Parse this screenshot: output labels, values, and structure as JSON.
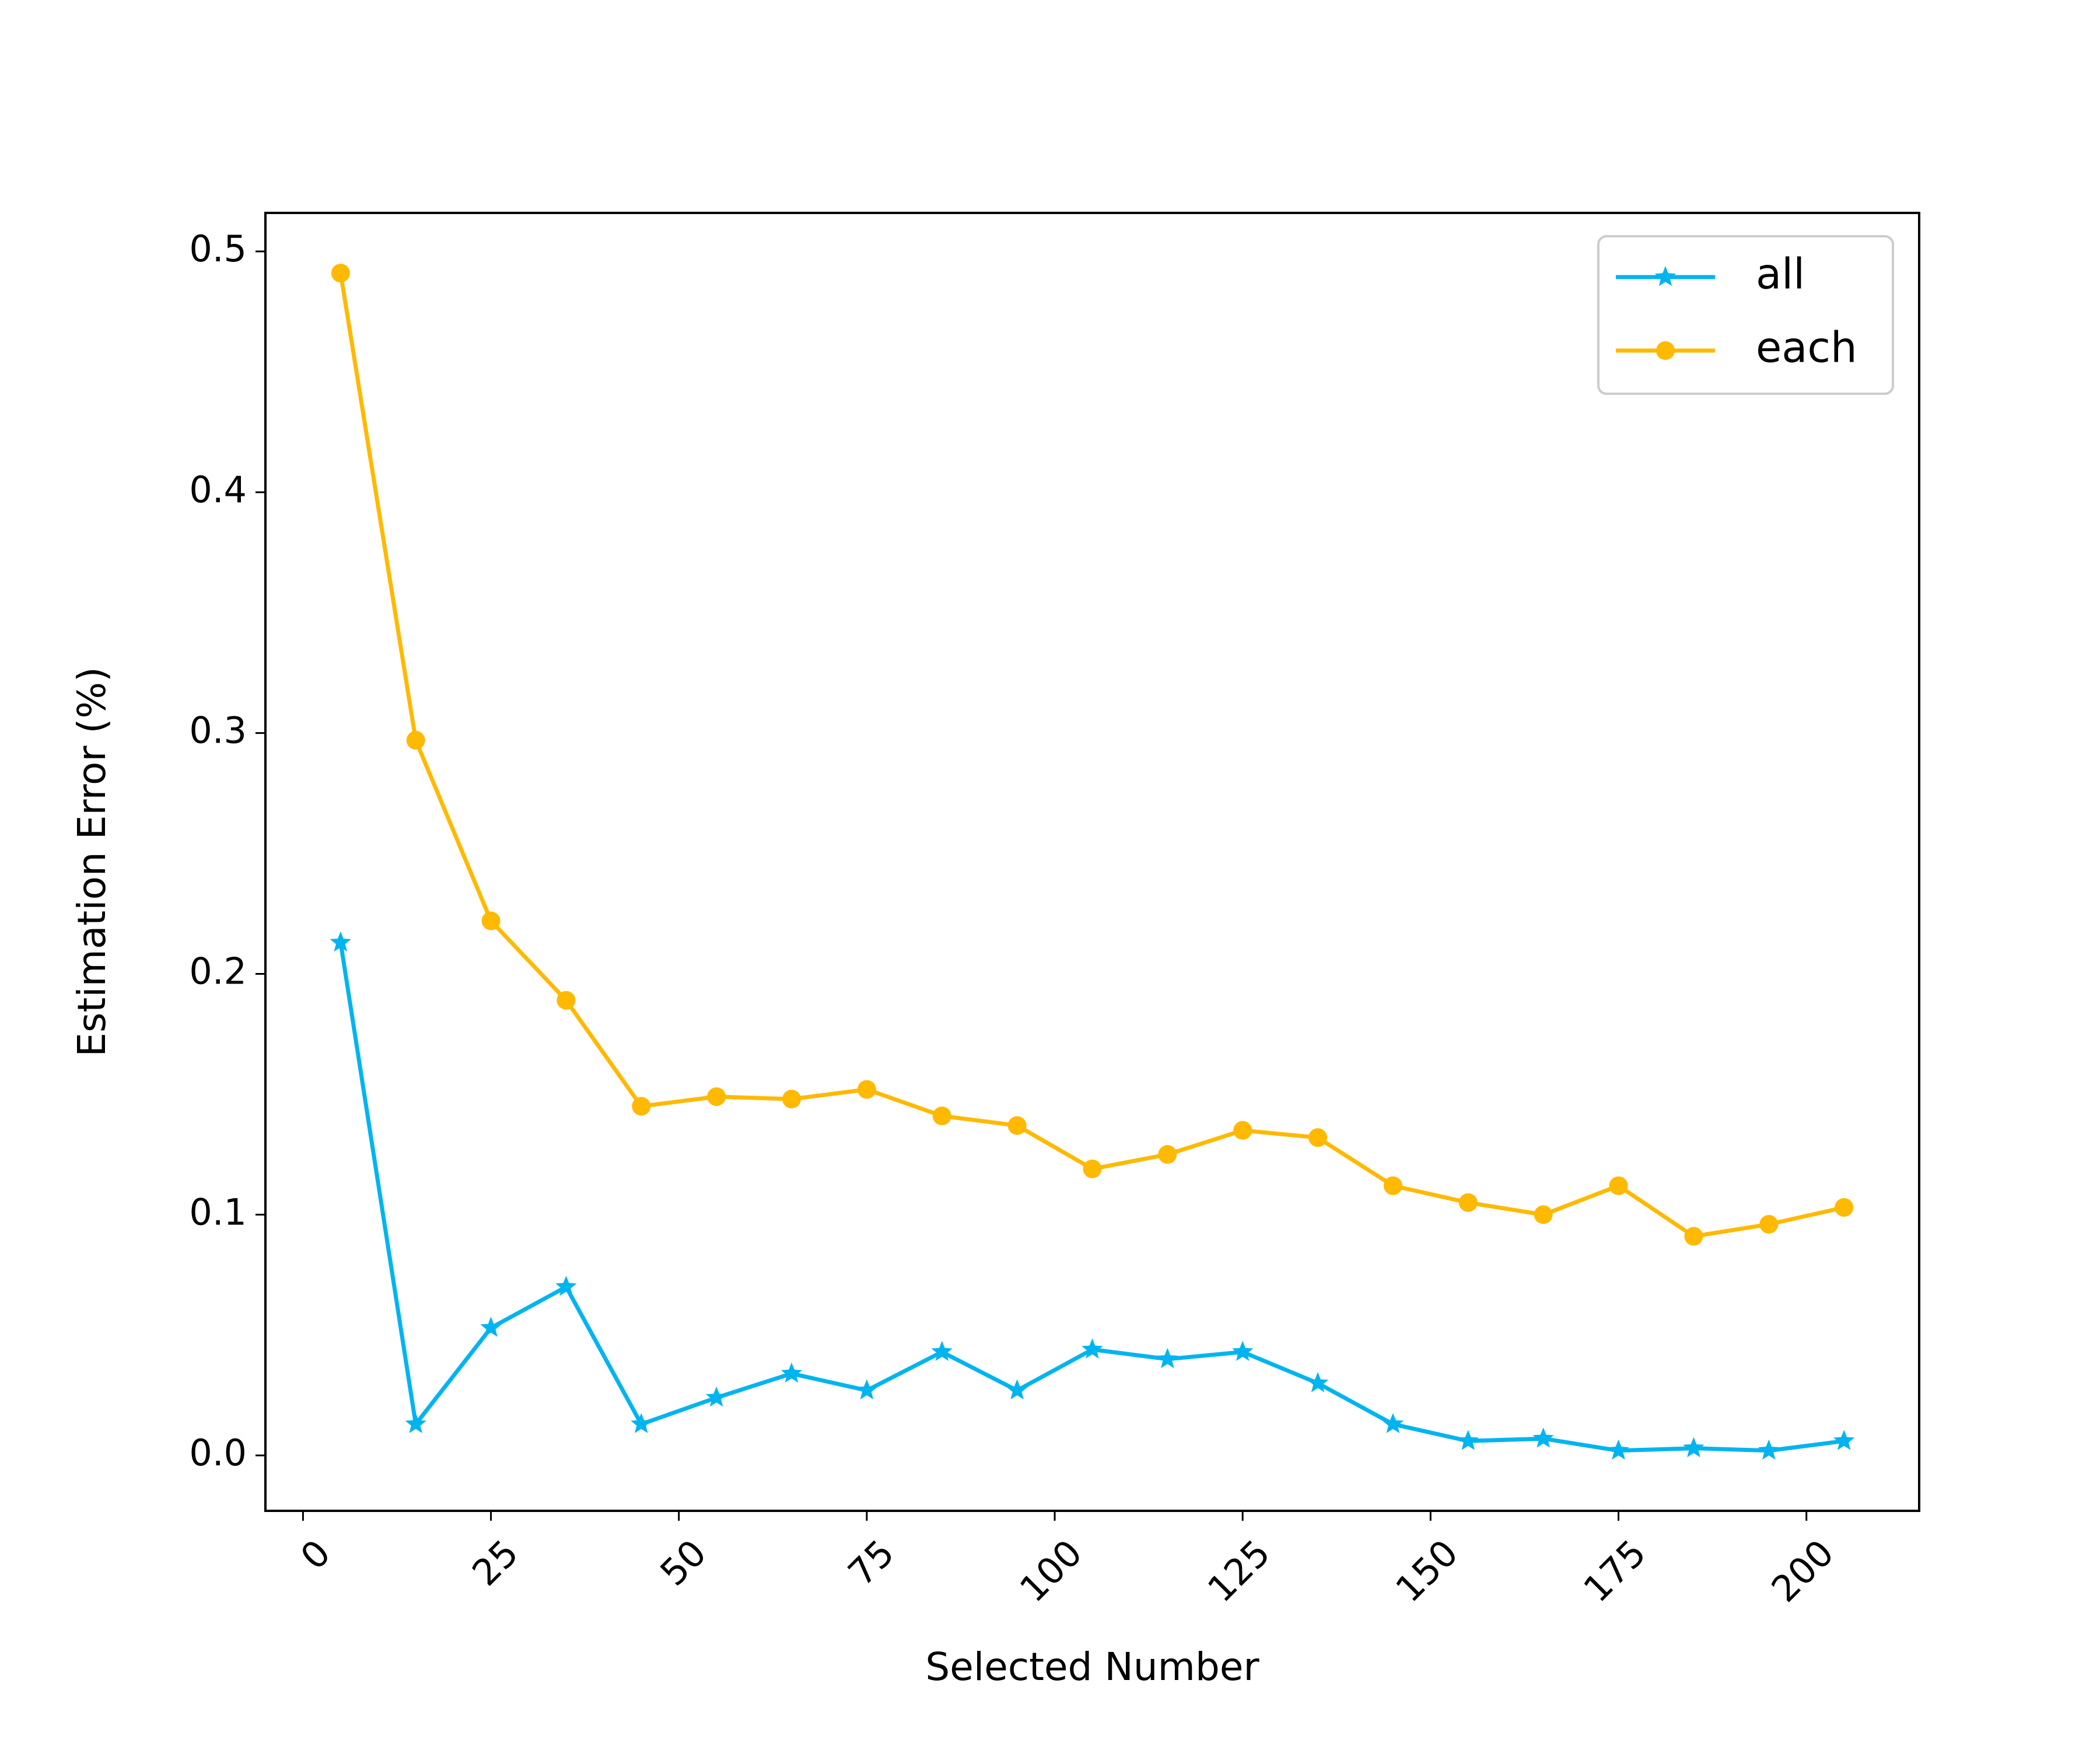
{
  "chart_data": {
    "type": "line",
    "xlabel": "Selected Number",
    "ylabel": "Estimation Error (%)",
    "xlim": [
      -5,
      215
    ],
    "ylim": [
      -0.023,
      0.516
    ],
    "xticks": [
      0,
      25,
      50,
      75,
      100,
      125,
      150,
      175,
      200
    ],
    "yticks": [
      0.0,
      0.1,
      0.2,
      0.3,
      0.4,
      0.5
    ],
    "ytick_labels": [
      "0.0",
      "0.1",
      "0.2",
      "0.3",
      "0.4",
      "0.5"
    ],
    "grid": false,
    "legend_position": "top-right",
    "x": [
      5,
      15,
      25,
      35,
      45,
      55,
      65,
      75,
      85,
      95,
      105,
      115,
      125,
      135,
      145,
      155,
      165,
      175,
      185,
      195,
      205
    ],
    "series": [
      {
        "name": "all",
        "color": "#00b4f0",
        "marker": "star",
        "values": [
          0.213,
          0.013,
          0.053,
          0.07,
          0.013,
          0.024,
          0.034,
          0.027,
          0.043,
          0.027,
          0.044,
          0.04,
          0.043,
          0.03,
          0.013,
          0.006,
          0.007,
          0.002,
          0.003,
          0.002,
          0.006
        ]
      },
      {
        "name": "each",
        "color": "#ffb900",
        "marker": "circle",
        "values": [
          0.491,
          0.297,
          0.222,
          0.189,
          0.145,
          0.149,
          0.148,
          0.152,
          0.141,
          0.137,
          0.119,
          0.125,
          0.135,
          0.132,
          0.112,
          0.105,
          0.1,
          0.112,
          0.091,
          0.096,
          0.103
        ]
      }
    ]
  }
}
